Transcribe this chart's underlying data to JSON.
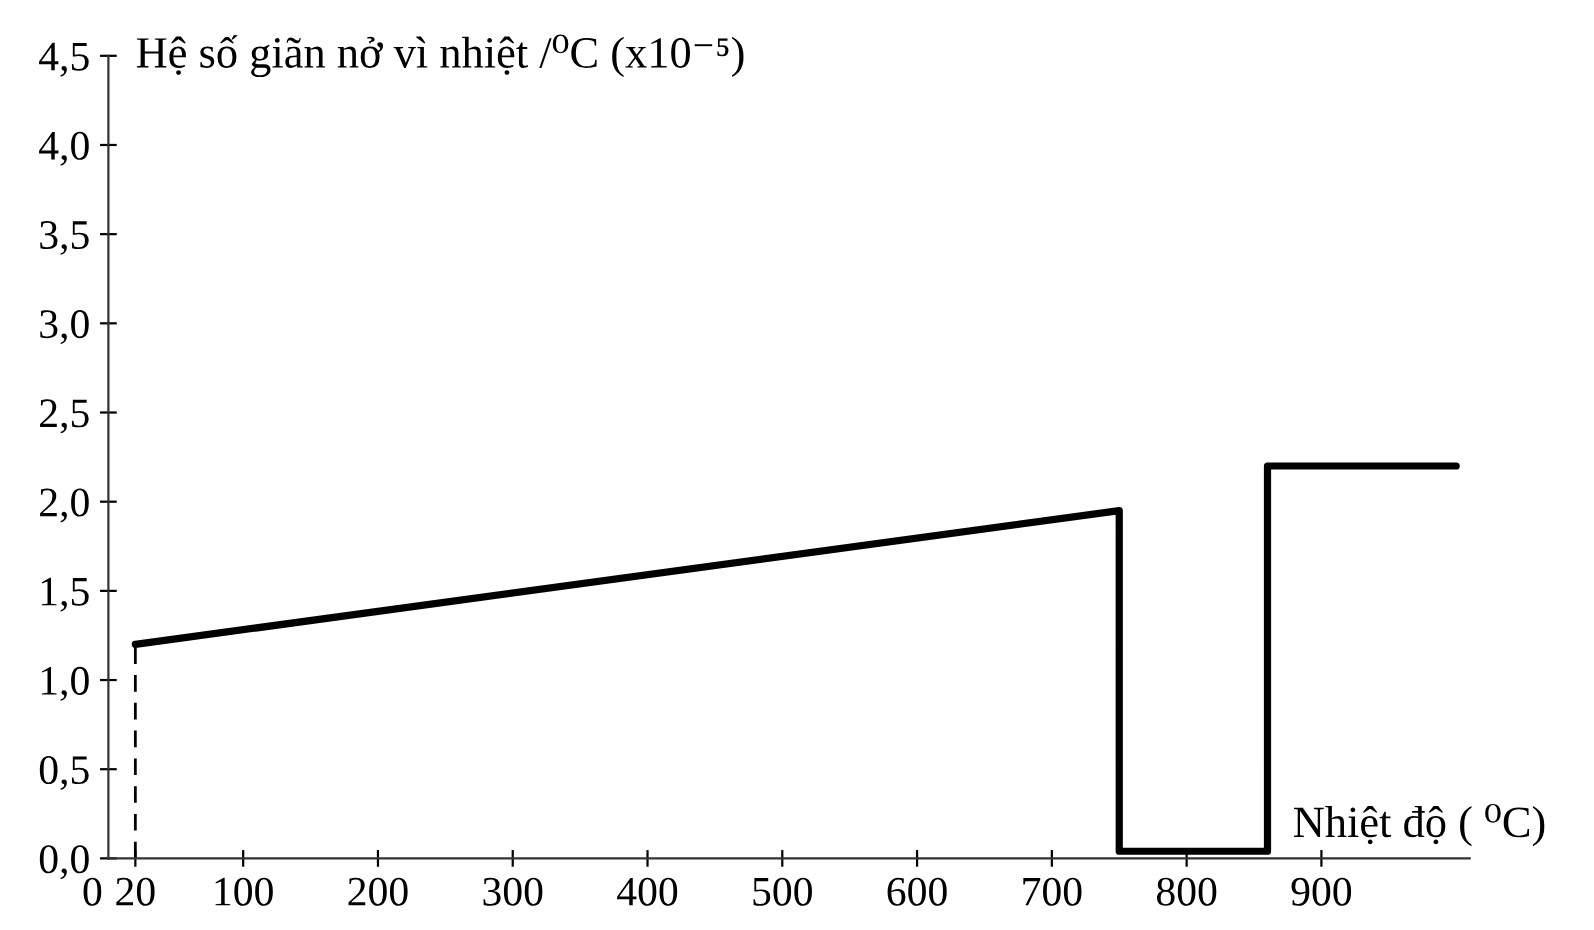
{
  "chart_data": {
    "type": "line",
    "xlabel": "Nhiệt độ ( ⁰C)",
    "ylabel": "Hệ số giãn nở vì nhiệt /⁰C (x10⁻⁵)",
    "series": [
      {
        "color": "#000000",
        "x": [
          20,
          750,
          750,
          860,
          860,
          1000
        ],
        "values": [
          1.2,
          1.95,
          0.04,
          0.04,
          2.2,
          2.2
        ],
        "line_style": "solid"
      },
      {
        "color": "#000000",
        "x": [
          20,
          20
        ],
        "values": [
          0,
          1.2
        ],
        "line_style": "dashed"
      }
    ],
    "xlim": [
      0,
      1010
    ],
    "xticks": [
      0,
      20,
      100,
      200,
      300,
      400,
      500,
      600,
      700,
      800,
      900
    ],
    "ylim": [
      0,
      4.5
    ],
    "yticks": [
      {
        "value": 0,
        "label": "0,0"
      },
      {
        "value": 0.5,
        "label": "0,5"
      },
      {
        "value": 1,
        "label": "1,0"
      },
      {
        "value": 1.5,
        "label": "1,5"
      },
      {
        "value": 2,
        "label": "2,0"
      },
      {
        "value": 2.5,
        "label": "2,5"
      },
      {
        "value": 3,
        "label": "3,0"
      },
      {
        "value": 3.5,
        "label": "3,5"
      },
      {
        "value": 4,
        "label": "4,0"
      },
      {
        "value": 4.5,
        "label": "4,5"
      }
    ],
    "grid": false,
    "legend": false
  }
}
